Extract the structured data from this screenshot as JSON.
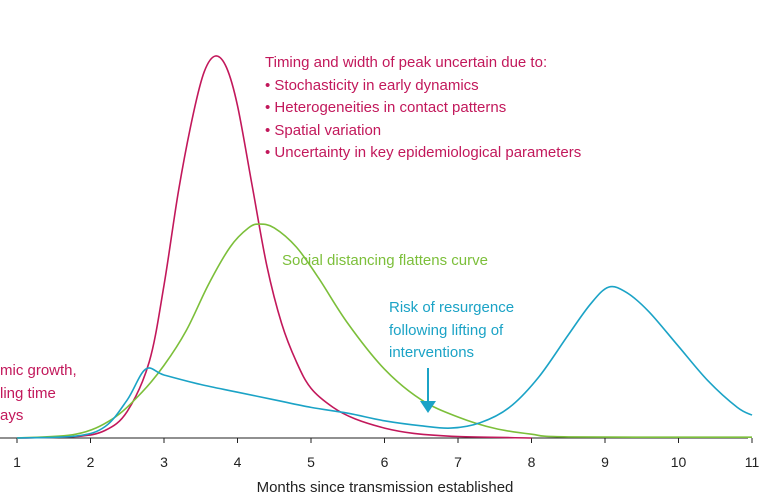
{
  "chart_data": {
    "type": "line",
    "title": "",
    "xlabel": "Months since transmission established",
    "ylabel": "",
    "xlim": [
      0.8,
      11
    ],
    "ylim": [
      0,
      1
    ],
    "x_ticks": [
      "1",
      "2",
      "3",
      "4",
      "5",
      "6",
      "7",
      "8",
      "9",
      "10",
      "11"
    ],
    "grid": false,
    "series": [
      {
        "color": "#c2185b",
        "points": [
          [
            1,
            0
          ],
          [
            1.8,
            0.004
          ],
          [
            2.2,
            0.02
          ],
          [
            2.5,
            0.07
          ],
          [
            2.8,
            0.2
          ],
          [
            3,
            0.4
          ],
          [
            3.2,
            0.65
          ],
          [
            3.4,
            0.85
          ],
          [
            3.55,
            0.96
          ],
          [
            3.7,
            1.0
          ],
          [
            3.85,
            0.97
          ],
          [
            4,
            0.87
          ],
          [
            4.2,
            0.66
          ],
          [
            4.4,
            0.45
          ],
          [
            4.6,
            0.3
          ],
          [
            4.8,
            0.2
          ],
          [
            5,
            0.13
          ],
          [
            5.3,
            0.08
          ],
          [
            5.6,
            0.05
          ],
          [
            6,
            0.026
          ],
          [
            6.4,
            0.012
          ],
          [
            7,
            0.004
          ],
          [
            8,
            0
          ]
        ]
      },
      {
        "color": "#7cbf3a",
        "points": [
          [
            1,
            0
          ],
          [
            1.8,
            0.01
          ],
          [
            2.3,
            0.05
          ],
          [
            2.7,
            0.12
          ],
          [
            3,
            0.19
          ],
          [
            3.3,
            0.28
          ],
          [
            3.6,
            0.4
          ],
          [
            3.9,
            0.5
          ],
          [
            4.15,
            0.55
          ],
          [
            4.3,
            0.56
          ],
          [
            4.5,
            0.55
          ],
          [
            4.8,
            0.5
          ],
          [
            5.1,
            0.42
          ],
          [
            5.5,
            0.3
          ],
          [
            6,
            0.18
          ],
          [
            6.5,
            0.1
          ],
          [
            7,
            0.055
          ],
          [
            7.5,
            0.025
          ],
          [
            8,
            0.01
          ],
          [
            8.5,
            0.003
          ],
          [
            11,
            0.002
          ]
        ]
      },
      {
        "color": "#1ba3c6",
        "points": [
          [
            1,
            0
          ],
          [
            1.8,
            0.005
          ],
          [
            2.2,
            0.03
          ],
          [
            2.5,
            0.1
          ],
          [
            2.75,
            0.18
          ],
          [
            3,
            0.165
          ],
          [
            3.5,
            0.14
          ],
          [
            4,
            0.12
          ],
          [
            4.5,
            0.1
          ],
          [
            5,
            0.08
          ],
          [
            5.5,
            0.065
          ],
          [
            6,
            0.045
          ],
          [
            6.5,
            0.032
          ],
          [
            6.9,
            0.026
          ],
          [
            7.3,
            0.04
          ],
          [
            7.7,
            0.08
          ],
          [
            8.1,
            0.16
          ],
          [
            8.5,
            0.27
          ],
          [
            8.8,
            0.35
          ],
          [
            9.05,
            0.395
          ],
          [
            9.3,
            0.38
          ],
          [
            9.6,
            0.33
          ],
          [
            10,
            0.24
          ],
          [
            10.4,
            0.15
          ],
          [
            10.8,
            0.08
          ],
          [
            11,
            0.06
          ]
        ]
      }
    ],
    "annotations": {
      "peak_title": "Timing and width of peak uncertain due to:",
      "peak_items": [
        "Stochasticity in early dynamics",
        "Heterogeneities in contact patterns",
        "Spatial variation",
        "Uncertainty in key epidemiological parameters"
      ],
      "distancing": "Social distancing flattens curve",
      "resurgence": [
        "Risk of resurgence",
        "following lifting of",
        "interventions"
      ],
      "growth": [
        "mic growth,",
        "ling time",
        "ays"
      ]
    }
  },
  "colors": {
    "unmitigated": "#c2185b",
    "distancing": "#7cbf3a",
    "resurgence": "#1ba3c6",
    "axis": "#222222"
  }
}
